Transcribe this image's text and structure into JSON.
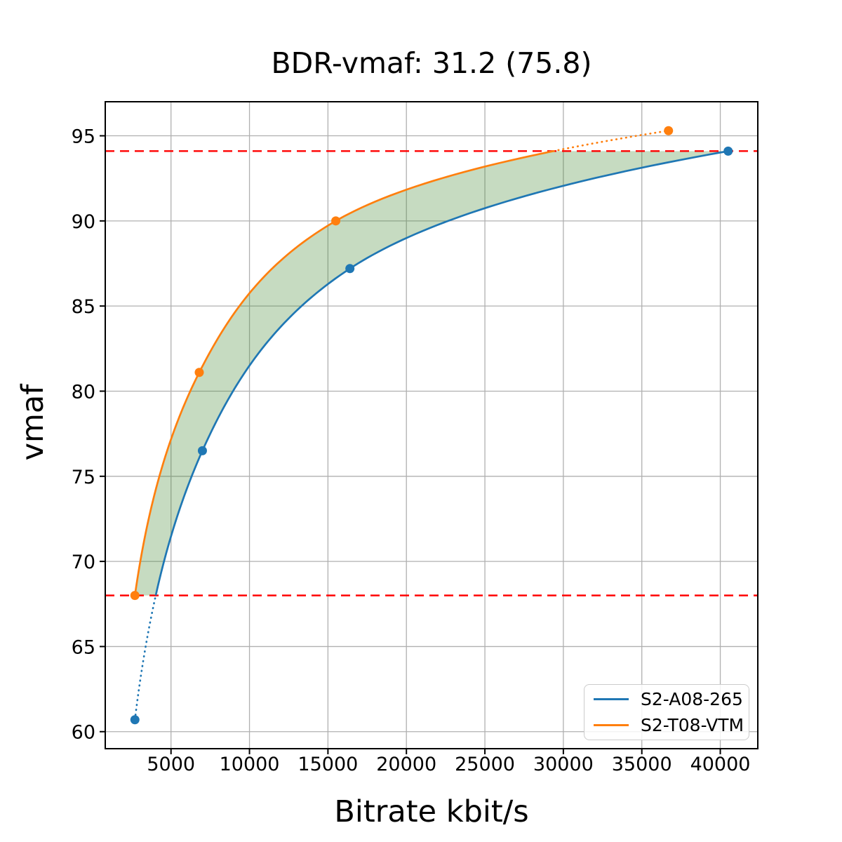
{
  "chart_data": {
    "type": "line",
    "title": "BDR-vmaf: 31.2 (75.8)",
    "xlabel": "Bitrate kbit/s",
    "ylabel": "vmaf",
    "xlim": [
      810,
      42390
    ],
    "ylim": [
      59.0,
      97.0
    ],
    "x_ticks": [
      5000,
      10000,
      15000,
      20000,
      25000,
      30000,
      35000,
      40000
    ],
    "y_ticks": [
      60,
      65,
      70,
      75,
      80,
      85,
      90,
      95
    ],
    "grid": true,
    "grid_color": "#b0b0b0",
    "legend_position": "lower right",
    "series": [
      {
        "name": "S2-A08-265",
        "color": "#1f77b4",
        "x": [
          2700,
          7000,
          16400,
          40500
        ],
        "y": [
          60.7,
          76.5,
          87.2,
          94.1
        ]
      },
      {
        "name": "S2-T08-VTM",
        "color": "#ff7f0e",
        "x": [
          2700,
          6800,
          15500,
          36700
        ],
        "y": [
          68.0,
          81.1,
          90.0,
          95.3
        ]
      }
    ],
    "bd_interval": {
      "low": 68.0,
      "high": 94.1
    },
    "reference_lines": [
      {
        "value": 94.1,
        "color": "#ff0000",
        "style": "dashed"
      },
      {
        "value": 68.0,
        "color": "#ff0000",
        "style": "dashed"
      }
    ],
    "shaded_region_color": "rgba(67,136,51,0.30)"
  }
}
